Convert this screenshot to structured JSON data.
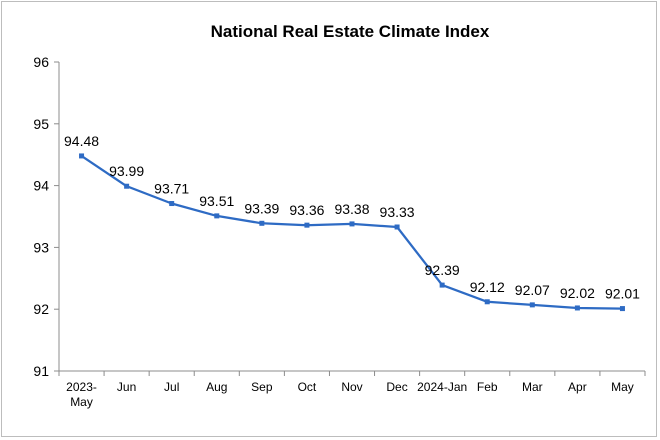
{
  "chart_data": {
    "type": "line",
    "title": "National Real Estate Climate Index",
    "categories": [
      "2023-\nMay",
      "Jun",
      "Jul",
      "Aug",
      "Sep",
      "Oct",
      "Nov",
      "Dec",
      "2024-Jan",
      "Feb",
      "Mar",
      "Apr",
      "May"
    ],
    "series": [
      {
        "values": [
          94.48,
          93.99,
          93.71,
          93.51,
          93.39,
          93.36,
          93.38,
          93.33,
          92.39,
          92.12,
          92.07,
          92.02,
          92.01
        ]
      }
    ],
    "data_labels": [
      "94.48",
      "93.99",
      "93.71",
      "93.51",
      "93.39",
      "93.36",
      "93.38",
      "93.33",
      "92.39",
      "92.12",
      "92.07",
      "92.02",
      "92.01"
    ],
    "ylim": [
      91,
      96
    ],
    "yticks": [
      "91",
      "92",
      "93",
      "94",
      "95",
      "96"
    ],
    "xlabel": "",
    "ylabel": "",
    "grid": false,
    "legend": "none",
    "line_color": "#2e6bc4"
  }
}
